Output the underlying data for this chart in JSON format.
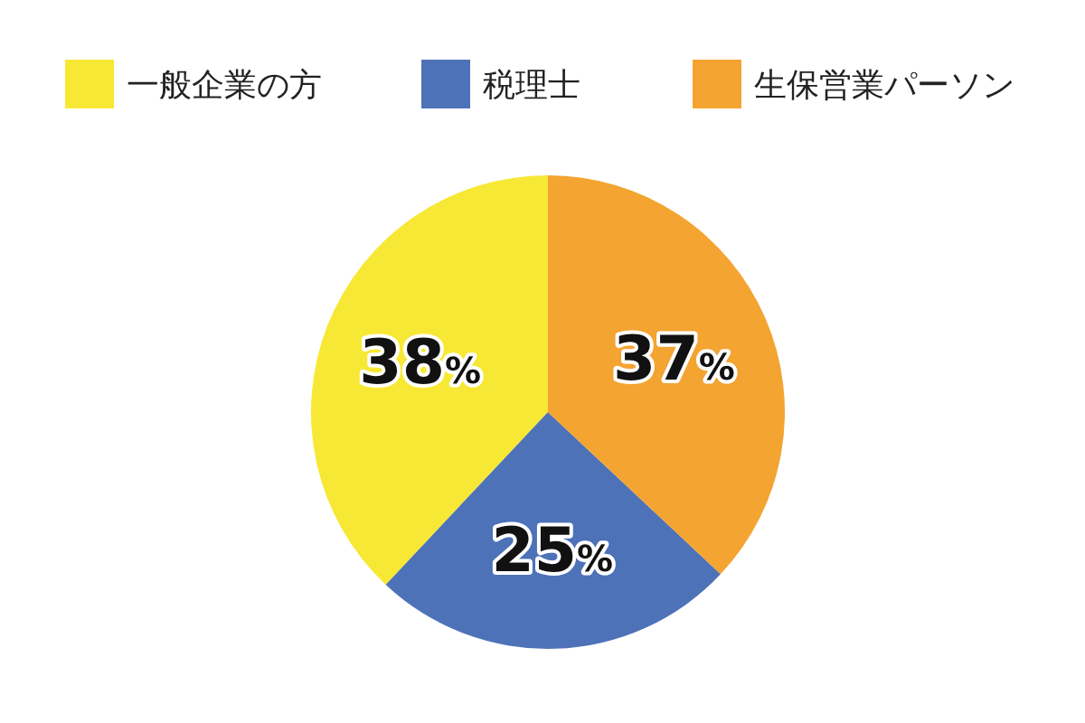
{
  "chart_data": {
    "type": "pie",
    "categories": [
      "一般企業の方",
      "税理士",
      "生保営業パーソン"
    ],
    "values": [
      38,
      25,
      37
    ],
    "colors": [
      "#f7e835",
      "#4d72b8",
      "#f4a431"
    ],
    "value_labels": [
      "38%",
      "25%",
      "37%"
    ],
    "legend": "top"
  }
}
